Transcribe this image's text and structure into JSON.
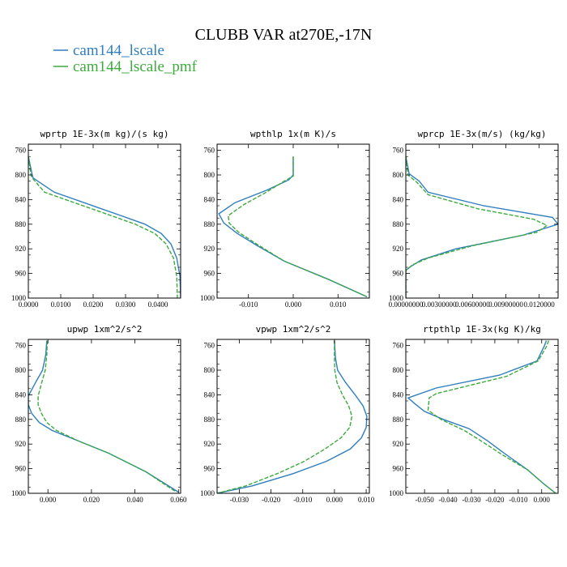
{
  "figure": {
    "title": "CLUBB VAR at270E,-17N",
    "legend": [
      {
        "label": "cam144_lscale",
        "color": "#2E7EBF",
        "dash": "solid"
      },
      {
        "label": "cam144_lscale_pmf",
        "color": "#3DAA3D",
        "dash": "dashed"
      }
    ]
  },
  "chart_data": [
    {
      "type": "line",
      "title": "wprtp  1E-3x(m kg)/(s kg)",
      "xlim": [
        0,
        0.047
      ],
      "ylim": [
        1000,
        750
      ],
      "xticks": [
        0,
        0.01,
        0.02,
        0.03,
        0.04
      ],
      "xtick_labels": [
        "0.0000",
        "0.0100",
        "0.0200",
        "0.0300",
        "0.0400"
      ],
      "yticks": [
        760,
        800,
        840,
        880,
        920,
        960,
        1000
      ],
      "ytick_labels": [
        "760",
        "800",
        "840",
        "880",
        "920",
        "960",
        "1000"
      ],
      "series": [
        {
          "name": "cam144_lscale",
          "points": [
            [
              0,
              770
            ],
            [
              0.0012,
              800
            ],
            [
              0.0015,
              805
            ],
            [
              0.008,
              828
            ],
            [
              0.028,
              865
            ],
            [
              0.036,
              880
            ],
            [
              0.041,
              895
            ],
            [
              0.044,
              912
            ],
            [
              0.0458,
              935
            ],
            [
              0.0468,
              965
            ],
            [
              0.047,
              1000
            ]
          ]
        },
        {
          "name": "cam144_lscale_pmf",
          "points": [
            [
              0,
              770
            ],
            [
              0.0008,
              800
            ],
            [
              0.0012,
              805
            ],
            [
              0.005,
              828
            ],
            [
              0.025,
              865
            ],
            [
              0.033,
              880
            ],
            [
              0.039,
              895
            ],
            [
              0.0425,
              912
            ],
            [
              0.0448,
              935
            ],
            [
              0.0458,
              965
            ],
            [
              0.046,
              1000
            ]
          ]
        }
      ]
    },
    {
      "type": "line",
      "title": "wpthlp  1x(m K)/s",
      "xlim": [
        -0.017,
        0.017
      ],
      "ylim": [
        1000,
        750
      ],
      "xticks": [
        -0.01,
        0,
        0.01
      ],
      "xtick_labels": [
        "-0.010",
        "0.000",
        "0.010"
      ],
      "yticks": [
        760,
        800,
        840,
        880,
        920,
        960,
        1000
      ],
      "ytick_labels": [
        "760",
        "800",
        "840",
        "880",
        "920",
        "960",
        "1000"
      ],
      "series": [
        {
          "name": "cam144_lscale",
          "points": [
            [
              0,
              770
            ],
            [
              0,
              800
            ],
            [
              -0.001,
              808
            ],
            [
              -0.006,
              825
            ],
            [
              -0.013,
              845
            ],
            [
              -0.0166,
              863
            ],
            [
              -0.0155,
              878
            ],
            [
              -0.0125,
              895
            ],
            [
              -0.008,
              915
            ],
            [
              -0.002,
              940
            ],
            [
              0.008,
              970
            ],
            [
              0.0165,
              998
            ]
          ]
        },
        {
          "name": "cam144_lscale_pmf",
          "points": [
            [
              0,
              770
            ],
            [
              0,
              802
            ],
            [
              -0.002,
              810
            ],
            [
              -0.006,
              828
            ],
            [
              -0.011,
              848
            ],
            [
              -0.0145,
              866
            ],
            [
              -0.0143,
              878
            ],
            [
              -0.0122,
              893
            ],
            [
              -0.008,
              913
            ],
            [
              -0.002,
              940
            ],
            [
              0.008,
              970
            ],
            [
              0.0165,
              998
            ]
          ]
        }
      ]
    },
    {
      "type": "line",
      "title": "wprcp  1E-3x(m/s) (kg/kg)",
      "xlim": [
        0,
        0.0137
      ],
      "ylim": [
        1000,
        750
      ],
      "xticks": [
        0,
        0.003,
        0.006,
        0.009,
        0.012
      ],
      "xtick_labels": [
        "0.00000000",
        "0.00300000",
        "0.00600000",
        "0.00900000",
        "0.0120000"
      ],
      "yticks": [
        760,
        800,
        840,
        880,
        920,
        960,
        1000
      ],
      "ytick_labels": [
        "760",
        "800",
        "840",
        "880",
        "920",
        "960",
        "1000"
      ],
      "series": [
        {
          "name": "cam144_lscale",
          "points": [
            [
              0,
              770
            ],
            [
              0.0003,
              798
            ],
            [
              0.0012,
              810
            ],
            [
              0.002,
              828
            ],
            [
              0.007,
              850
            ],
            [
              0.0132,
              869
            ],
            [
              0.0137,
              880
            ],
            [
              0.0105,
              898
            ],
            [
              0.0045,
              920
            ],
            [
              0.0014,
              938
            ],
            [
              0.0005,
              948
            ],
            [
              0,
              955
            ],
            [
              0,
              1000
            ]
          ]
        },
        {
          "name": "cam144_lscale_pmf",
          "points": [
            [
              0,
              770
            ],
            [
              0.0002,
              800
            ],
            [
              0.001,
              812
            ],
            [
              0.002,
              832
            ],
            [
              0.0065,
              855
            ],
            [
              0.0115,
              872
            ],
            [
              0.0127,
              882
            ],
            [
              0.0118,
              893
            ],
            [
              0.006,
              915
            ],
            [
              0.002,
              935
            ],
            [
              0.0006,
              946
            ],
            [
              0,
              955
            ],
            [
              0,
              1000
            ]
          ]
        }
      ]
    },
    {
      "type": "line",
      "title": "upwp  1xm^2/s^2",
      "xlim": [
        -0.009,
        0.061
      ],
      "ylim": [
        1000,
        750
      ],
      "xticks": [
        0,
        0.02,
        0.04,
        0.06
      ],
      "xtick_labels": [
        "0.000",
        "0.020",
        "0.040",
        "0.060"
      ],
      "yticks": [
        760,
        800,
        840,
        880,
        920,
        960,
        1000
      ],
      "ytick_labels": [
        "760",
        "800",
        "840",
        "880",
        "920",
        "960",
        "1000"
      ],
      "series": [
        {
          "name": "cam144_lscale",
          "points": [
            [
              -0.0005,
              752
            ],
            [
              -0.001,
              775
            ],
            [
              -0.0025,
              800
            ],
            [
              -0.006,
              822
            ],
            [
              -0.009,
              842
            ],
            [
              -0.009,
              856
            ],
            [
              -0.0075,
              870
            ],
            [
              -0.004,
              885
            ],
            [
              0.002,
              898
            ],
            [
              0.014,
              915
            ],
            [
              0.028,
              935
            ],
            [
              0.045,
              965
            ],
            [
              0.06,
              998
            ]
          ]
        },
        {
          "name": "cam144_lscale_pmf",
          "points": [
            [
              -0.0003,
              752
            ],
            [
              -0.0005,
              775
            ],
            [
              -0.0012,
              800
            ],
            [
              -0.003,
              822
            ],
            [
              -0.0045,
              842
            ],
            [
              -0.0045,
              856
            ],
            [
              -0.003,
              870
            ],
            [
              -0.0005,
              885
            ],
            [
              0.004,
              898
            ],
            [
              0.014,
              915
            ],
            [
              0.028,
              935
            ],
            [
              0.045,
              965
            ],
            [
              0.059,
              998
            ]
          ]
        }
      ]
    },
    {
      "type": "line",
      "title": "vpwp  1xm^2/s^2",
      "xlim": [
        -0.037,
        0.011
      ],
      "ylim": [
        1000,
        750
      ],
      "xticks": [
        -0.03,
        -0.02,
        -0.01,
        0,
        0.01
      ],
      "xtick_labels": [
        "-0.030",
        "-0.020",
        "-0.010",
        "0.000",
        "0.010"
      ],
      "yticks": [
        760,
        800,
        840,
        880,
        920,
        960,
        1000
      ],
      "ytick_labels": [
        "760",
        "800",
        "840",
        "880",
        "920",
        "960",
        "1000"
      ],
      "series": [
        {
          "name": "cam144_lscale",
          "points": [
            [
              0,
              752
            ],
            [
              0.0003,
              780
            ],
            [
              0.001,
              800
            ],
            [
              0.0035,
              820
            ],
            [
              0.0065,
              840
            ],
            [
              0.009,
              858
            ],
            [
              0.0102,
              875
            ],
            [
              0.01,
              893
            ],
            [
              0.0085,
              910
            ],
            [
              0.005,
              928
            ],
            [
              -0.0025,
              948
            ],
            [
              -0.013,
              968
            ],
            [
              -0.026,
              988
            ],
            [
              -0.037,
              1000
            ]
          ]
        },
        {
          "name": "cam144_lscale_pmf",
          "points": [
            [
              0,
              752
            ],
            [
              0,
              780
            ],
            [
              0.0001,
              800
            ],
            [
              0.0008,
              820
            ],
            [
              0.0025,
              840
            ],
            [
              0.0045,
              858
            ],
            [
              0.0055,
              875
            ],
            [
              0.0048,
              893
            ],
            [
              0.002,
              910
            ],
            [
              -0.003,
              928
            ],
            [
              -0.0095,
              948
            ],
            [
              -0.018,
              968
            ],
            [
              -0.028,
              988
            ],
            [
              -0.037,
              1000
            ]
          ]
        }
      ]
    },
    {
      "type": "line",
      "title": "rtpthlp  1E-3x(kg K)/kg",
      "xlim": [
        -0.058,
        0.007
      ],
      "ylim": [
        1000,
        750
      ],
      "xticks": [
        -0.05,
        -0.04,
        -0.03,
        -0.02,
        -0.01,
        0
      ],
      "xtick_labels": [
        "-0.050",
        "-0.040",
        "-0.030",
        "-0.020",
        "-0.010",
        "0.000"
      ],
      "yticks": [
        760,
        800,
        840,
        880,
        920,
        960,
        1000
      ],
      "ytick_labels": [
        "760",
        "800",
        "840",
        "880",
        "920",
        "960",
        "1000"
      ],
      "series": [
        {
          "name": "cam144_lscale",
          "points": [
            [
              0.002,
              752
            ],
            [
              0.001,
              762
            ],
            [
              -0.002,
              785
            ],
            [
              -0.018,
              808
            ],
            [
              -0.045,
              829
            ],
            [
              -0.057,
              845
            ],
            [
              -0.054,
              855
            ],
            [
              -0.05,
              867
            ],
            [
              -0.042,
              880
            ],
            [
              -0.031,
              895
            ],
            [
              -0.023,
              915
            ],
            [
              -0.016,
              935
            ],
            [
              -0.006,
              962
            ],
            [
              0.001,
              985
            ],
            [
              0.006,
              1000
            ]
          ]
        },
        {
          "name": "cam144_lscale_pmf",
          "points": [
            [
              0.003,
              752
            ],
            [
              0.002,
              762
            ],
            [
              -0.0015,
              785
            ],
            [
              -0.015,
              810
            ],
            [
              -0.045,
              838
            ],
            [
              -0.048,
              845
            ],
            [
              -0.0485,
              865
            ],
            [
              -0.043,
              880
            ],
            [
              -0.033,
              898
            ],
            [
              -0.025,
              917
            ],
            [
              -0.017,
              937
            ],
            [
              -0.006,
              962
            ],
            [
              0.001,
              985
            ],
            [
              0.006,
              1000
            ]
          ]
        }
      ]
    }
  ]
}
